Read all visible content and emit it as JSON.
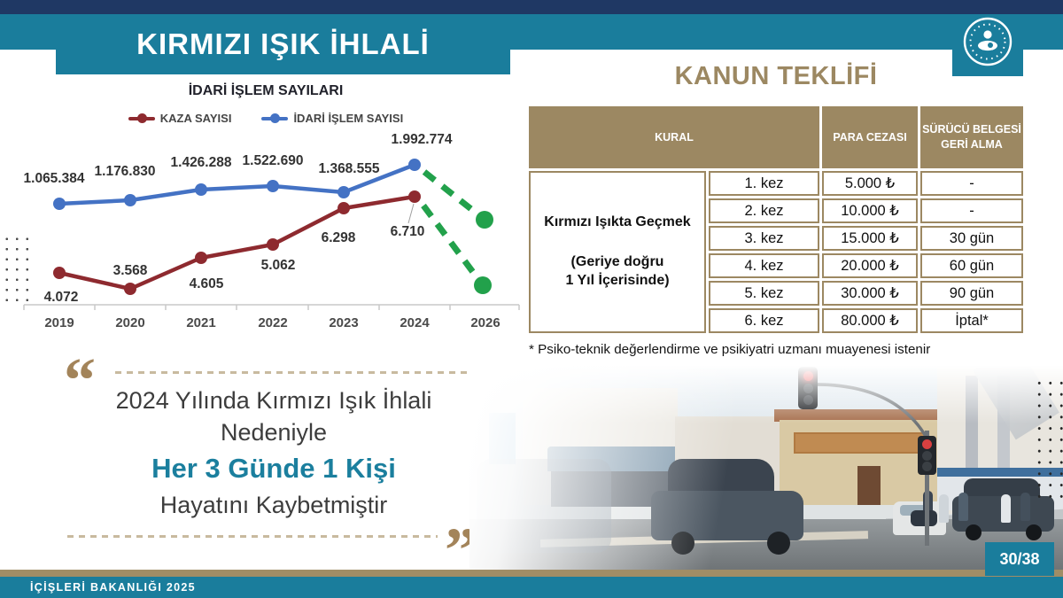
{
  "slide": {
    "title": "KIRMIZI IŞIK İHLALİ",
    "right_title": "KANUN TEKLİFİ",
    "footer": "İÇİŞLERİ BAKANLIĞI 2025",
    "page": "30/38"
  },
  "chart_data": {
    "type": "line",
    "title": "İDARİ İŞLEM SAYILARI",
    "categories": [
      "2019",
      "2020",
      "2021",
      "2022",
      "2023",
      "2024",
      "2026"
    ],
    "series": [
      {
        "name": "KAZA SAYISI",
        "color": "#8e2a2f",
        "values": [
          4072,
          3568,
          4605,
          5062,
          6298,
          6710
        ],
        "labels": [
          "4.072",
          "3.568",
          "4.605",
          "5.062",
          "6.298",
          "6.710"
        ]
      },
      {
        "name": "İDARİ İŞLEM SAYISI",
        "color": "#4472c4",
        "values": [
          1065384,
          1176830,
          1426288,
          1522690,
          1368555,
          1992774
        ],
        "labels": [
          "1.065.384",
          "1.176.830",
          "1.426.288",
          "1.522.690",
          "1.368.555",
          "1.992.774"
        ]
      }
    ],
    "projection": {
      "to_category": "2026",
      "style": "dashed",
      "color": "#22a14b",
      "direction": "down",
      "applies_to": [
        "KAZA SAYISI",
        "İDARİ İŞLEM SAYISI"
      ]
    },
    "legend_position": "top",
    "grid": false,
    "xlabel": "",
    "ylabel": ""
  },
  "table": {
    "headers": [
      "KURAL",
      "PARA CEZASI",
      "SÜRÜCÜ BELGESİ GERİ ALMA"
    ],
    "rule": {
      "line1": "Kırmızı Işıkta Geçmek",
      "line2": "(Geriye doğru",
      "line3": "1 Yıl İçerisinde)"
    },
    "rows": [
      {
        "kez": "1. kez",
        "ceza": "5.000 ₺",
        "alma": "-"
      },
      {
        "kez": "2. kez",
        "ceza": "10.000 ₺",
        "alma": "-"
      },
      {
        "kez": "3. kez",
        "ceza": "15.000 ₺",
        "alma": "30 gün"
      },
      {
        "kez": "4. kez",
        "ceza": "20.000 ₺",
        "alma": "60 gün"
      },
      {
        "kez": "5. kez",
        "ceza": "30.000 ₺",
        "alma": "90 gün"
      },
      {
        "kez": "6. kez",
        "ceza": "80.000 ₺",
        "alma": "İptal*"
      }
    ],
    "footnote": "* Psiko-teknik değerlendirme ve psikiyatri uzmanı muayenesi istenir"
  },
  "quote": {
    "open_mark": "“",
    "close_mark": "”",
    "line1": "2024 Yılında Kırmızı Işık İhlali",
    "line2": "Nedeniyle",
    "highlight": "Her 3 Günde 1 Kişi",
    "line3": "Hayatını Kaybetmiştir"
  },
  "colors": {
    "navy": "#1f3864",
    "teal": "#1a7d9c",
    "tan": "#9c8862",
    "chart_red": "#8e2a2f",
    "chart_blue": "#4472c4",
    "projection_green": "#22a14b",
    "quote_highlight": "#1b7f9e"
  }
}
